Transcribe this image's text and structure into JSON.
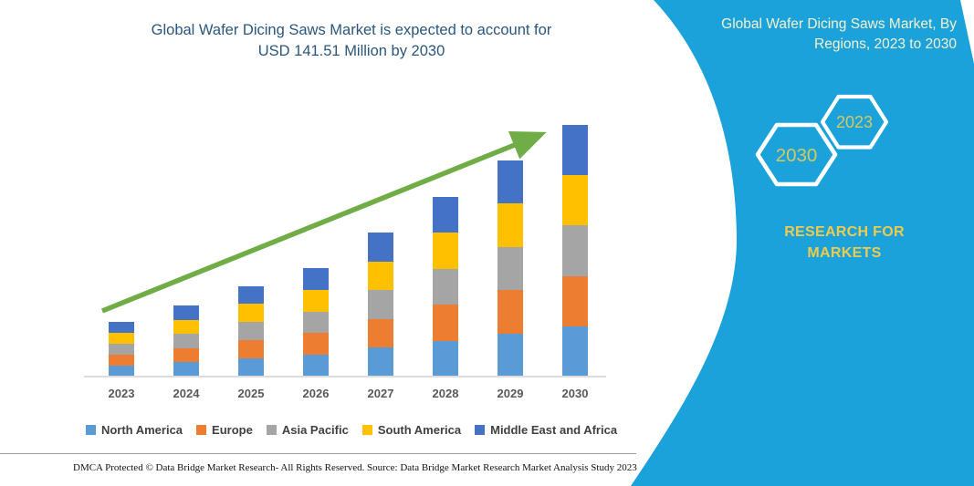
{
  "page": {
    "title_line1": "Global Wafer Dicing Saws Market is expected to account for",
    "title_line2": "USD 141.51 Million by 2030",
    "title_color": "#2A567C"
  },
  "chart_data": {
    "type": "bar",
    "stacked": true,
    "title": "Global Wafer Dicing Saws Market is expected to account for USD 141.51 Million by 2030",
    "unit": "USD Million",
    "categories": [
      "2023",
      "2024",
      "2025",
      "2026",
      "2027",
      "2028",
      "2029",
      "2030"
    ],
    "series": [
      {
        "name": "North America",
        "color": "#5B9BD5",
        "values": [
          6.2,
          8.0,
          10.2,
          12.2,
          16.2,
          20.2,
          24.3,
          28.3
        ]
      },
      {
        "name": "Europe",
        "color": "#ED7D31",
        "values": [
          6.2,
          8.0,
          10.2,
          12.2,
          16.2,
          20.2,
          24.3,
          28.3
        ]
      },
      {
        "name": "Asia Pacific",
        "color": "#A5A5A5",
        "values": [
          6.2,
          8.0,
          10.2,
          12.2,
          16.2,
          20.2,
          24.3,
          28.3
        ]
      },
      {
        "name": "South America",
        "color": "#FFC000",
        "values": [
          6.2,
          8.0,
          10.2,
          12.2,
          16.2,
          20.2,
          24.3,
          28.3
        ]
      },
      {
        "name": "Middle East and Africa",
        "color": "#4472C4",
        "values": [
          6.2,
          8.0,
          10.2,
          12.2,
          16.2,
          20.2,
          24.3,
          28.3
        ]
      }
    ],
    "totals": [
      30.8,
      40.0,
      50.8,
      61.0,
      81.0,
      101.0,
      121.5,
      141.5
    ],
    "ylim": [
      0,
      150
    ],
    "value_axis_visible": false,
    "gridlines": false,
    "legend_position": "bottom",
    "trend_arrow_color": "#70AD47",
    "note": "No value axis shown; values estimated proportionally from bar heights, scaled so the 2030 total equals the stated USD 141.51 Million; the five regional segments appear as roughly equal fifths of each bar."
  },
  "panel": {
    "bg_color": "#1BA2DB",
    "title_line1": "Global Wafer Dicing Saws Market, By",
    "title_line2": "Regions, 2023 to 2030",
    "title_color": "#F6F1CD",
    "hexagon_front_label": "2030",
    "hexagon_back_label": "2023",
    "hexagon_label_color": "#D6C85C",
    "hexagon_outline_color": "#FFFFFF",
    "brand_line1": "RESEARCH FOR",
    "brand_line2": "MARKETS",
    "brand_color": "#EFCB4D"
  },
  "footer": {
    "left": "DMCA Protected © Data Bridge Market Research-  All Rights Reserved.",
    "right": "Source: Data Bridge Market Research  Market Analysis Study 2023"
  }
}
